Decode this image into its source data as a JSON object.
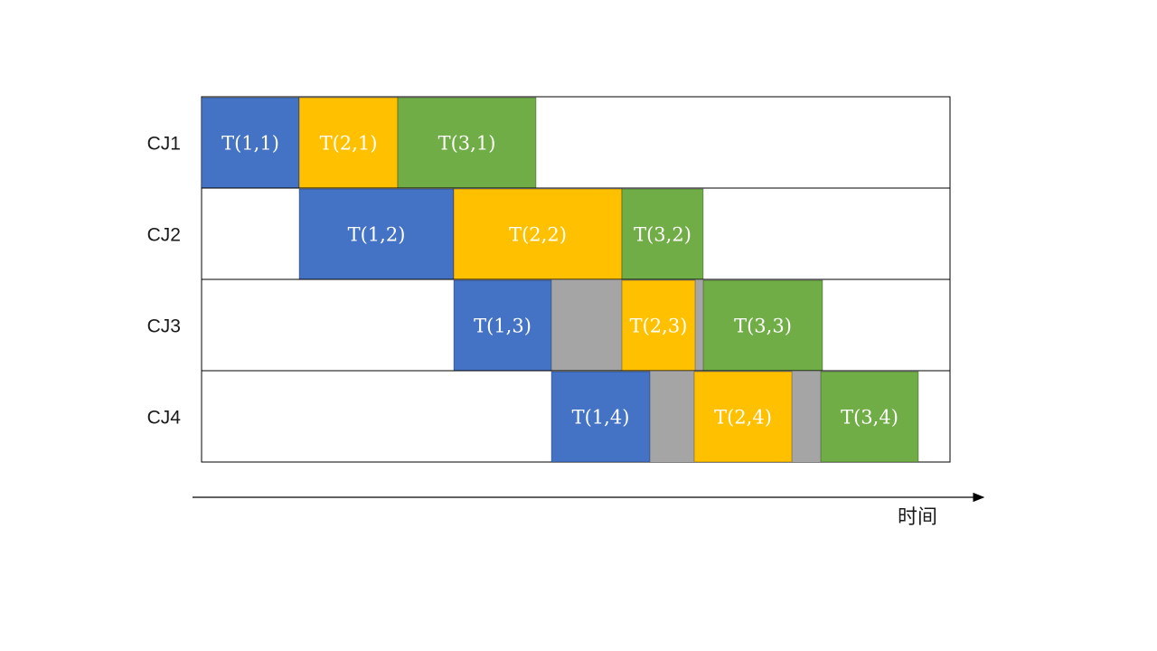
{
  "chart_data": {
    "type": "gantt",
    "x_axis_label": "时间",
    "colors": {
      "stage1": "#4472c4",
      "stage2": "#ffc000",
      "stage3": "#70ad47",
      "idle": "#a5a5a5"
    },
    "rows": [
      {
        "label": "CJ1",
        "tasks": [
          {
            "label": "T(1,1)",
            "stage": "stage1",
            "start": 0,
            "end": 108
          },
          {
            "label": "T(2,1)",
            "stage": "stage2",
            "start": 108,
            "end": 217
          },
          {
            "label": "T(3,1)",
            "stage": "stage3",
            "start": 217,
            "end": 370
          }
        ],
        "idle": []
      },
      {
        "label": "CJ2",
        "tasks": [
          {
            "label": "T(1,2)",
            "stage": "stage1",
            "start": 108,
            "end": 279
          },
          {
            "label": "T(2,2)",
            "stage": "stage2",
            "start": 279,
            "end": 465
          },
          {
            "label": "T(3,2)",
            "stage": "stage3",
            "start": 465,
            "end": 555
          }
        ],
        "idle": []
      },
      {
        "label": "CJ3",
        "tasks": [
          {
            "label": "T(1,3)",
            "stage": "stage1",
            "start": 279,
            "end": 387
          },
          {
            "label": "T(2,3)",
            "stage": "stage2",
            "start": 465,
            "end": 546
          },
          {
            "label": "T(3,3)",
            "stage": "stage3",
            "start": 555,
            "end": 687
          }
        ],
        "idle": [
          {
            "start": 387,
            "end": 465
          },
          {
            "start": 546,
            "end": 555
          }
        ]
      },
      {
        "label": "CJ4",
        "tasks": [
          {
            "label": "T(1,4)",
            "stage": "stage1",
            "start": 387,
            "end": 496
          },
          {
            "label": "T(2,4)",
            "stage": "stage2",
            "start": 545,
            "end": 653
          },
          {
            "label": "T(3,4)",
            "stage": "stage3",
            "start": 685,
            "end": 793
          }
        ],
        "idle": [
          {
            "start": 496,
            "end": 545
          },
          {
            "start": 653,
            "end": 685
          }
        ]
      }
    ],
    "time_range": [
      0,
      828
    ]
  }
}
